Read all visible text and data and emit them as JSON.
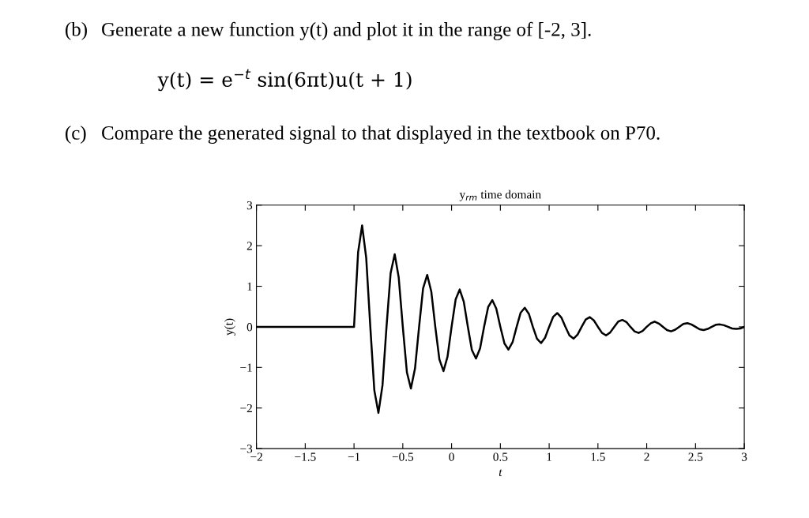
{
  "chart_data": {
    "type": "line",
    "title": "y$_{rm}$ time domain",
    "xlabel": "t",
    "ylabel": "y(t)",
    "annotations": [
      "(b)",
      "Generate a new function y(t) and plot it in the range of [-2, 3].",
      "y(t) = e$^{−t}$ sin(6πt)u(t + 1)",
      "(c)",
      "Compare the generated signal to that displayed in the textbook on P70."
    ],
    "x": [
      -2,
      -1,
      -0.958,
      -0.917,
      -0.875,
      -0.833,
      -0.792,
      -0.75,
      -0.708,
      -0.667,
      -0.625,
      -0.583,
      -0.542,
      -0.5,
      -0.458,
      -0.417,
      -0.375,
      -0.333,
      -0.292,
      -0.25,
      -0.208,
      -0.167,
      -0.125,
      -0.083,
      -0.042,
      0,
      0.042,
      0.083,
      0.125,
      0.167,
      0.208,
      0.25,
      0.292,
      0.333,
      0.375,
      0.417,
      0.458,
      0.5,
      0.542,
      0.583,
      0.625,
      0.667,
      0.708,
      0.75,
      0.792,
      0.833,
      0.875,
      0.917,
      0.958,
      1,
      1.042,
      1.083,
      1.125,
      1.167,
      1.208,
      1.25,
      1.292,
      1.333,
      1.375,
      1.417,
      1.458,
      1.5,
      1.542,
      1.583,
      1.625,
      1.667,
      1.708,
      1.75,
      1.792,
      1.833,
      1.875,
      1.917,
      1.958,
      2,
      2.042,
      2.083,
      2.125,
      2.167,
      2.208,
      2.25,
      2.292,
      2.333,
      2.375,
      2.417,
      2.458,
      2.5,
      2.542,
      2.583,
      2.625,
      2.667,
      2.708,
      2.75,
      2.792,
      2.833,
      2.875,
      2.917,
      2.958,
      3
    ],
    "series": [
      {
        "color": "#000000",
        "values": [
          0,
          0,
          1.84,
          2.5,
          1.7,
          0,
          -1.56,
          -2.12,
          -1.44,
          0,
          1.32,
          1.79,
          1.22,
          0,
          -1.12,
          -1.52,
          -1.03,
          0,
          0.95,
          1.28,
          0.87,
          0,
          -0.8,
          -1.09,
          -0.74,
          0,
          0.68,
          0.92,
          0.62,
          0,
          -0.57,
          -0.78,
          -0.53,
          0,
          0.49,
          0.66,
          0.45,
          0,
          -0.41,
          -0.56,
          -0.38,
          0,
          0.35,
          0.47,
          0.32,
          0,
          -0.29,
          -0.4,
          -0.27,
          0,
          0.25,
          0.34,
          0.23,
          0,
          -0.21,
          -0.29,
          -0.19,
          0,
          0.18,
          0.24,
          0.16,
          0,
          -0.15,
          -0.21,
          -0.14,
          0,
          0.13,
          0.17,
          0.12,
          0,
          -0.11,
          -0.15,
          -0.1,
          0,
          0.09,
          0.13,
          0.08,
          0,
          -0.08,
          -0.11,
          -0.07,
          0,
          0.07,
          0.09,
          0.06,
          0,
          -0.06,
          -0.08,
          -0.05,
          0,
          0.05,
          0.06,
          0.04,
          0,
          -0.04,
          -0.05,
          -0.04,
          0
        ]
      }
    ],
    "xlim": [
      -2,
      3
    ],
    "ylim": [
      -3,
      3
    ],
    "xticks": [
      {
        "value": -2,
        "label": "−2"
      },
      {
        "value": -1.5,
        "label": "−1.5"
      },
      {
        "value": -1,
        "label": "−1"
      },
      {
        "value": -0.5,
        "label": "−0.5"
      },
      0,
      0.5,
      1,
      1.5,
      2,
      2.5,
      3
    ],
    "yticks": [
      {
        "value": -3,
        "label": "−3"
      },
      {
        "value": -2,
        "label": "−2"
      },
      {
        "value": -1,
        "label": "−1"
      },
      0,
      1,
      2,
      3
    ],
    "grid": false,
    "legend": false,
    "marker": "none",
    "line_style": "solid"
  }
}
